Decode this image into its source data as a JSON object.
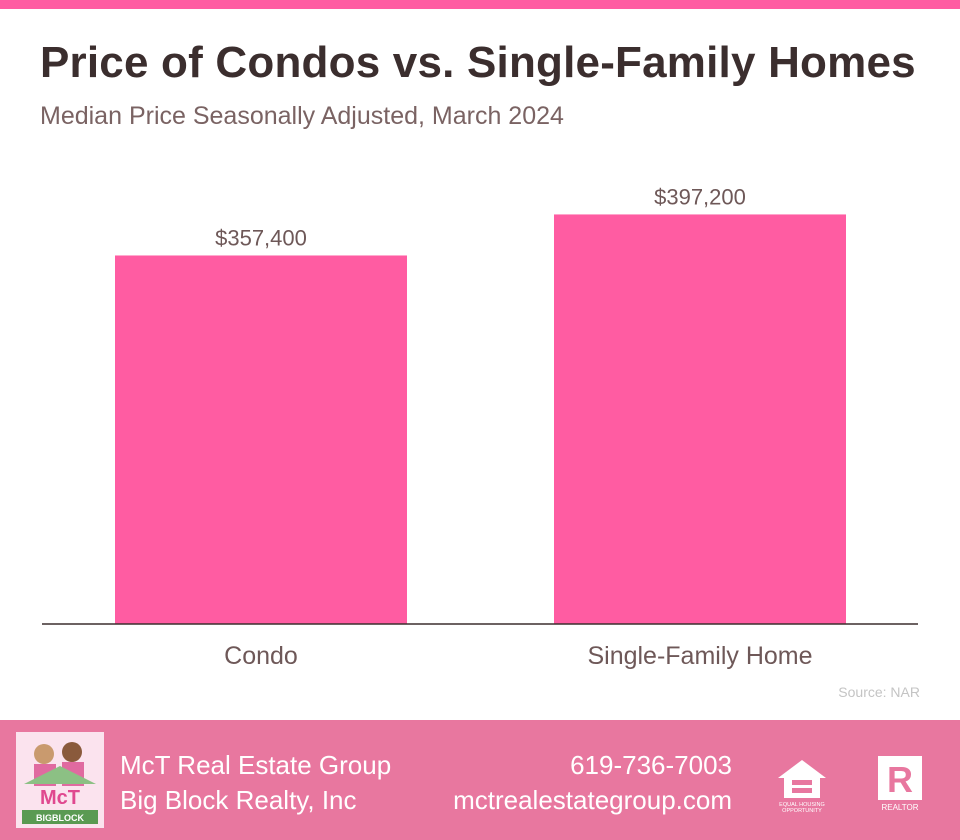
{
  "header": {
    "title": "Price of Condos vs. Single-Family Homes",
    "subtitle": "Median Price Seasonally Adjusted, March 2024"
  },
  "chart_data": {
    "type": "bar",
    "title": "Price of Condos vs. Single-Family Homes",
    "subtitle": "Median Price Seasonally Adjusted, March 2024",
    "categories": [
      "Condo",
      "Single-Family Home"
    ],
    "values": [
      357400,
      397200
    ],
    "value_labels": [
      "$357,400",
      "$397,200"
    ],
    "ylim": [
      0,
      450000
    ],
    "grid": false,
    "legend": "none",
    "bar_color": "#ff5ca2"
  },
  "source": "Source: NAR",
  "footer": {
    "brand_line1": "McT Real Estate Group",
    "brand_line2": "Big Block Realty, Inc",
    "phone": "619-736-7003",
    "website": "mctrealestategroup.com",
    "logo_text": "McT",
    "logo_subtext": "BIGBLOCK",
    "eho_text1": "EQUAL HOUSING",
    "eho_text2": "OPPORTUNITY",
    "realtor_letter": "R",
    "realtor_text": "REALTOR"
  },
  "colors": {
    "accent": "#ff5ca2",
    "footer": "#e8779f",
    "title": "#3b2e2e",
    "subtitle": "#7a6363"
  }
}
